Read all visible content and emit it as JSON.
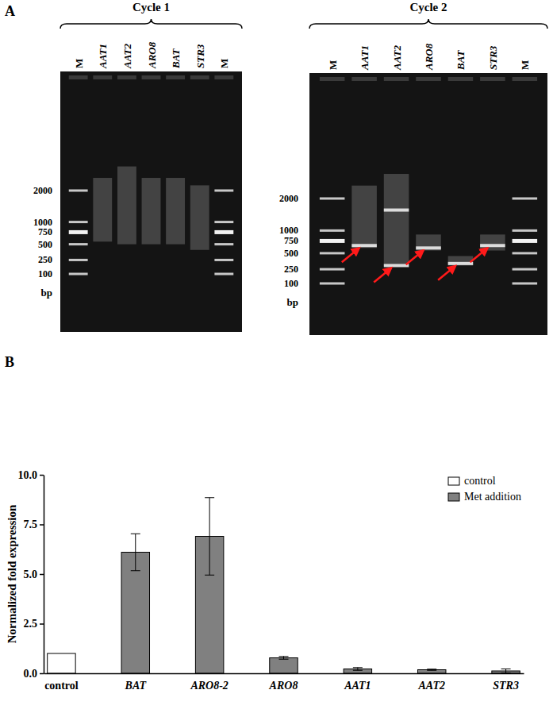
{
  "panels": [
    "A",
    "B"
  ],
  "gels": [
    {
      "title": "Cycle 1",
      "lanes": [
        "M",
        "AAT1",
        "AAT2",
        "ARO8",
        "BAT",
        "STR3",
        "M"
      ],
      "ladder": [
        2000,
        1000,
        750,
        500,
        250,
        100
      ],
      "unit": "bp",
      "smears": [
        null,
        [
          550,
          2500
        ],
        [
          500,
          3000
        ],
        [
          500,
          2500
        ],
        [
          500,
          2500
        ],
        [
          400,
          2200
        ],
        null
      ],
      "bands": [
        null,
        [],
        [],
        [],
        [],
        [],
        null
      ],
      "arrows": [
        null,
        null,
        null,
        null,
        null,
        null,
        null
      ]
    },
    {
      "title": "Cycle 2",
      "lanes": [
        "M",
        "AAT1",
        "AAT2",
        "ARO8",
        "BAT",
        "STR3",
        "M"
      ],
      "ladder": [
        2000,
        1000,
        750,
        500,
        250,
        100
      ],
      "unit": "bp",
      "smears": [
        null,
        [
          600,
          2500
        ],
        [
          300,
          3000
        ],
        [
          550,
          900
        ],
        [
          300,
          450
        ],
        [
          550,
          900
        ],
        null
      ],
      "bands": [
        null,
        [
          650
        ],
        [
          300,
          1600
        ],
        [
          600
        ],
        [
          330
        ],
        [
          650
        ],
        null
      ],
      "arrows": [
        null,
        650,
        300,
        600,
        330,
        650,
        null
      ]
    }
  ],
  "chart_data": {
    "type": "bar",
    "y_label": "Normalized fold expression",
    "categories": [
      "control",
      "BAT",
      "ARO8-2",
      "ARO8",
      "AAT1",
      "AAT2",
      "STR3"
    ],
    "series": [
      {
        "name": "control",
        "color": "#ffffff",
        "values": [
          1.0,
          null,
          null,
          null,
          null,
          null,
          null
        ]
      },
      {
        "name": "Met addition",
        "color": "#808080",
        "values": [
          null,
          6.1,
          6.9,
          0.78,
          0.22,
          0.18,
          0.12
        ],
        "errors": [
          null,
          0.93,
          1.95,
          0.07,
          0.07,
          0.03,
          0.1
        ]
      }
    ],
    "ylim": [
      0,
      10
    ],
    "yticks": [
      {
        "value": 0,
        "label": "0.0"
      },
      2.5,
      {
        "value": 5,
        "label": "5.0"
      },
      7.5,
      {
        "value": 10,
        "label": "10.0"
      }
    ],
    "grid": false,
    "legend": "upper right"
  }
}
